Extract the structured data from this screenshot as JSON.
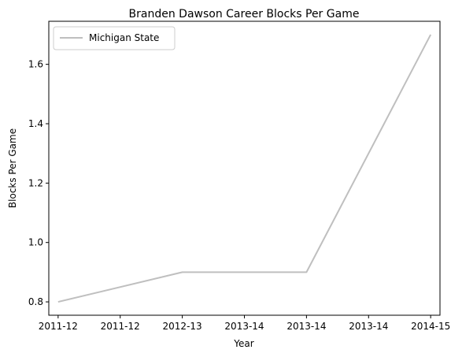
{
  "chart_data": {
    "type": "line",
    "title": "Branden Dawson Career Blocks Per Game",
    "xlabel": "Year",
    "ylabel": "Blocks Per Game",
    "x_tick_labels": [
      "2011-12",
      "2011-12",
      "2012-13",
      "2013-14",
      "2013-14",
      "2013-14",
      "2014-15"
    ],
    "y_ticks": [
      0.8,
      1.0,
      1.2,
      1.4,
      1.6
    ],
    "ylim": [
      0.755,
      1.745
    ],
    "xlim": [
      -0.15,
      6.15
    ],
    "grid": false,
    "legend_position": "top-left",
    "series": [
      {
        "name": "Michigan State",
        "color": "#bfbfbf",
        "points": [
          {
            "x": 0,
            "y": 0.8
          },
          {
            "x": 2,
            "y": 0.9
          },
          {
            "x": 4,
            "y": 0.9
          },
          {
            "x": 6,
            "y": 1.7
          }
        ]
      }
    ]
  }
}
